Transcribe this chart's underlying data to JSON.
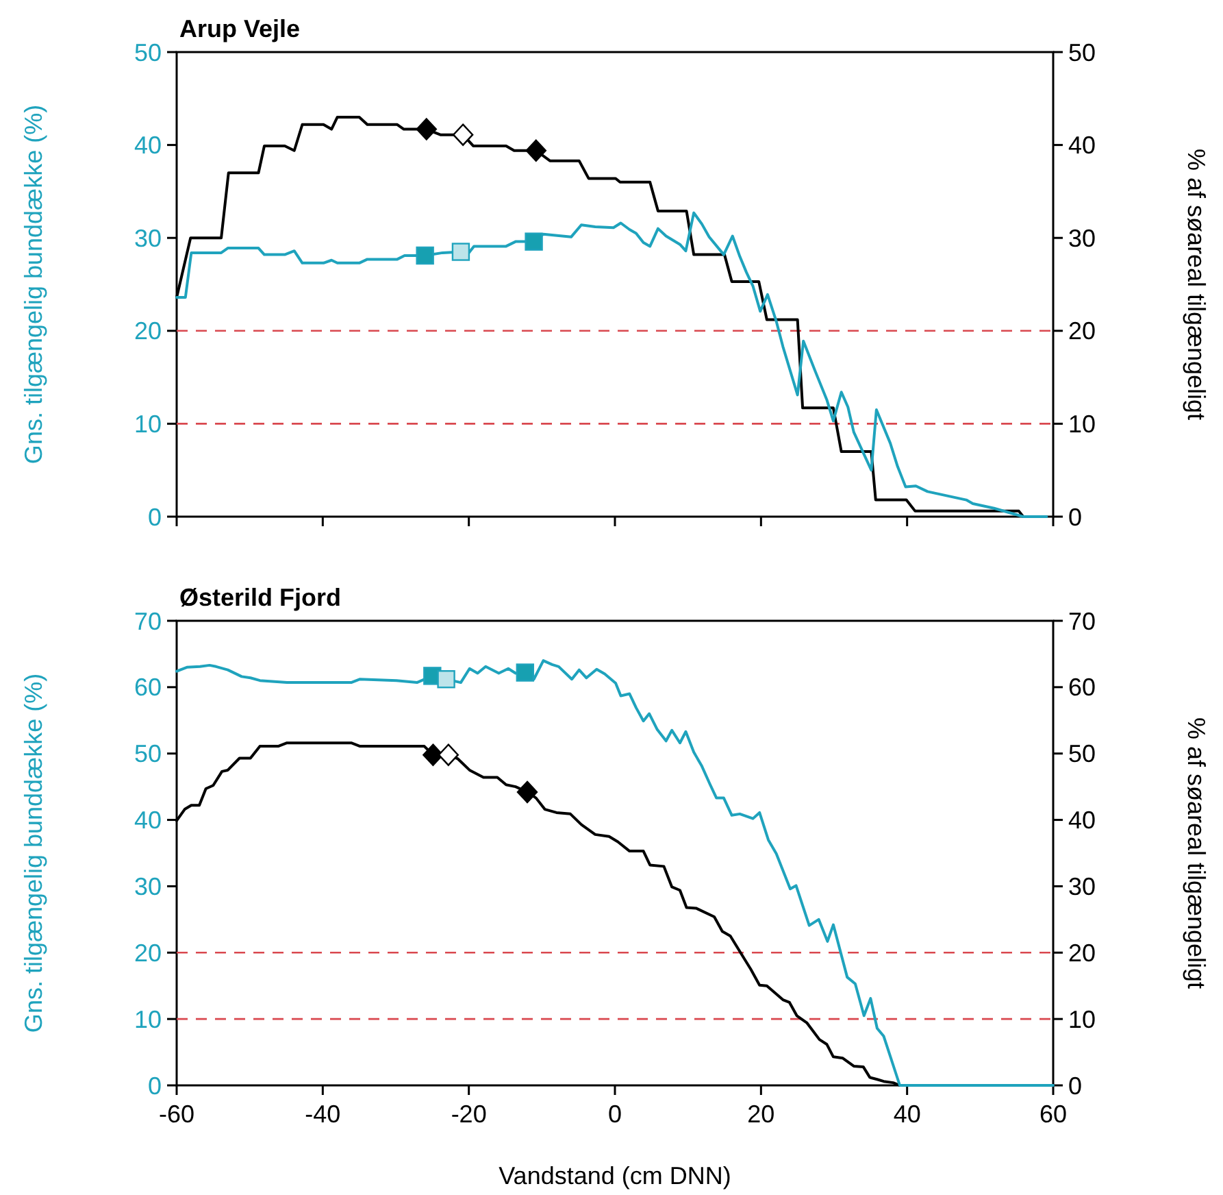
{
  "chart_data": [
    {
      "type": "line",
      "title": "Arup Vejle",
      "ylabel": "Gns. tilgængelig bunddække (%)",
      "y2label": "% af søareal tilgængeligt",
      "xlim": [
        -60,
        60
      ],
      "xticks": [
        -60,
        -40,
        -20,
        0,
        20,
        40,
        60
      ],
      "ylim": [
        0,
        50
      ],
      "yticks": [
        0,
        10,
        20,
        30,
        40,
        50
      ],
      "y2lim": [
        0,
        50
      ],
      "y2ticks": [
        0,
        10,
        20,
        30,
        40,
        50
      ],
      "tick_labels": "y",
      "ref_lines": [
        {
          "axis": "y",
          "value": 20,
          "color": "#d9484f",
          "line_style": "dashed"
        },
        {
          "axis": "y",
          "value": 10,
          "color": "#d9484f",
          "line_style": "dashed"
        }
      ],
      "series": [
        {
          "axis": "y2",
          "color": "#000000",
          "x": [
            -60,
            -58.1,
            -53.9,
            -52.9,
            -48.8,
            -48,
            -45.2,
            -43.9,
            -42.8,
            -39.9,
            -38.8,
            -38,
            -35,
            -33.9,
            -29.8,
            -28.9,
            -25.8,
            -23.9,
            -20.8,
            -19.4,
            -14.9,
            -13.8,
            -10.8,
            -8.9,
            -4.9,
            -3.6,
            0.1,
            0.7,
            4.8,
            5.9,
            9.8,
            10.8,
            15,
            16,
            19.7,
            20.8,
            25,
            25.7,
            29.9,
            31,
            35.1,
            35.7,
            39.9,
            41.1,
            55.3,
            55.9
          ],
          "values": [
            23.6,
            30,
            30,
            37,
            37,
            39.9,
            39.9,
            39.4,
            42.2,
            42.2,
            41.7,
            43,
            43,
            42.2,
            42.2,
            41.7,
            41.7,
            41.1,
            41.1,
            39.9,
            39.9,
            39.4,
            39.4,
            38.3,
            38.3,
            36.4,
            36.4,
            36,
            36,
            32.9,
            32.9,
            28.2,
            28.2,
            25.3,
            25.3,
            21.2,
            21.2,
            11.7,
            11.7,
            7,
            7,
            1.8,
            1.8,
            0.6,
            0.6,
            0
          ]
        },
        {
          "axis": "y",
          "color": "#1fa3bd",
          "x": [
            -60,
            -58.8,
            -58,
            -53.9,
            -53,
            -48.8,
            -48,
            -45.2,
            -43.9,
            -42.8,
            -39.9,
            -38.8,
            -38,
            -35,
            -33.9,
            -29.8,
            -28.8,
            -26,
            -23.6,
            -21.1,
            -20,
            -19.3,
            -14.9,
            -13.6,
            -11.1,
            -9.8,
            -6,
            -4.6,
            -2.7,
            -0.2,
            0.8,
            2,
            2.9,
            3.9,
            4.8,
            5.9,
            7,
            8.9,
            9.7,
            10.8,
            11.9,
            12.9,
            14.9,
            16.1,
            17.1,
            18,
            18.9,
            19.9,
            20.9,
            22.1,
            23,
            25,
            25.8,
            27.4,
            29,
            29.9,
            31,
            31.9,
            32.7,
            35.1,
            35.8,
            37.7,
            38.7,
            39.8,
            41.2,
            42.8,
            48.1,
            49,
            51.9,
            53.7,
            55.9,
            59.1
          ],
          "values": [
            23.6,
            23.6,
            28.4,
            28.4,
            28.9,
            28.9,
            28.2,
            28.2,
            28.6,
            27.3,
            27.3,
            27.6,
            27.3,
            27.3,
            27.7,
            27.7,
            28.1,
            28.1,
            28.4,
            28.5,
            28.4,
            29.1,
            29.1,
            29.6,
            29.6,
            30.4,
            30.1,
            31.4,
            31.2,
            31.1,
            31.6,
            30.9,
            30.5,
            29.5,
            29.1,
            31,
            30.2,
            29.3,
            28.6,
            32.7,
            31.5,
            30.1,
            28.2,
            30.2,
            28,
            26.3,
            24.8,
            22.1,
            23.9,
            21,
            18.3,
            13.1,
            18.9,
            15.7,
            12.6,
            10.3,
            13.4,
            11.8,
            9.1,
            5,
            11.5,
            7.9,
            5.4,
            3.2,
            3.3,
            2.7,
            1.8,
            1.4,
            0.9,
            0.5,
            0,
            0
          ]
        },
        {
          "type": "scatter",
          "axis": "y",
          "marker": "square",
          "color": "#17a0b1",
          "x": [
            -26,
            -11.1
          ],
          "values": [
            28.1,
            29.6
          ]
        },
        {
          "type": "scatter",
          "axis": "y",
          "marker": "square",
          "color": "#bde4ea",
          "x": [
            -21.1
          ],
          "values": [
            28.5
          ]
        },
        {
          "type": "scatter",
          "axis": "y2",
          "marker": "diamond",
          "color": "#000000",
          "x": [
            -25.8,
            -10.8
          ],
          "values": [
            41.7,
            39.4
          ]
        },
        {
          "type": "scatter",
          "axis": "y2",
          "marker": "diamond",
          "color": "#ffffff",
          "x": [
            -20.8
          ],
          "values": [
            41.1
          ]
        }
      ]
    },
    {
      "type": "line",
      "title": "Østerild Fjord",
      "xlabel": "Vandstand (cm DNN)",
      "ylabel": "Gns. tilgængelig bunddække (%)",
      "y2label": "% af søareal tilgængeligt",
      "xlim": [
        -60,
        60
      ],
      "xticks": [
        -60,
        -40,
        -20,
        0,
        20,
        40,
        60
      ],
      "ylim": [
        0,
        70
      ],
      "yticks": [
        0,
        10,
        20,
        30,
        40,
        50,
        60,
        70
      ],
      "y2lim": [
        0,
        70
      ],
      "y2ticks": [
        0,
        10,
        20,
        30,
        40,
        50,
        60,
        70
      ],
      "ref_lines": [
        {
          "axis": "y",
          "value": 20,
          "color": "#d9484f",
          "line_style": "dashed"
        },
        {
          "axis": "y",
          "value": 10,
          "color": "#d9484f",
          "line_style": "dashed"
        }
      ],
      "series": [
        {
          "axis": "y2",
          "color": "#000000",
          "x": [
            -60,
            -58.9,
            -58,
            -56.9,
            -56,
            -55,
            -53.8,
            -53,
            -51.4,
            -49.9,
            -48.6,
            -46.1,
            -44.9,
            -36.1,
            -34.9,
            -26.1,
            -24.9,
            -22.8,
            -21.5,
            -19.9,
            -18,
            -16.1,
            -14.9,
            -13.6,
            -12,
            -10.8,
            -9.6,
            -8,
            -6.1,
            -4.6,
            -2.7,
            -0.8,
            0.4,
            2,
            3.9,
            4.8,
            6.7,
            7.8,
            8.9,
            9.8,
            11.1,
            13.6,
            14.7,
            15.8,
            17.7,
            18.6,
            19.8,
            20.8,
            23,
            23.9,
            24.9,
            26.3,
            28,
            29,
            29.9,
            31.2,
            32.7,
            34,
            34.9,
            35.9,
            36.8,
            38.1,
            39
          ],
          "values": [
            39.9,
            41.6,
            42.2,
            42.2,
            44.7,
            45.2,
            47.3,
            47.5,
            49.3,
            49.3,
            51.1,
            51.1,
            51.6,
            51.6,
            51.1,
            51.1,
            49.8,
            49.8,
            49.2,
            47.5,
            46.4,
            46.4,
            45.3,
            45,
            44.2,
            43.3,
            41.6,
            41.1,
            40.9,
            39.3,
            37.8,
            37.5,
            36.7,
            35.3,
            35.3,
            33.2,
            33,
            29.9,
            29.4,
            26.8,
            26.7,
            25.4,
            23.2,
            22.5,
            19.1,
            17.5,
            15.1,
            15,
            12.9,
            12.5,
            10.5,
            9.4,
            6.9,
            6.2,
            4.3,
            4.1,
            2.9,
            2.8,
            1.2,
            0.9,
            0.6,
            0.4,
            0
          ]
        },
        {
          "axis": "y",
          "color": "#1fa3bd",
          "x": [
            -60,
            -58.6,
            -56.8,
            -55.5,
            -54.6,
            -53,
            -51.1,
            -49.9,
            -48.6,
            -44.9,
            -36.1,
            -34.9,
            -29.9,
            -27.1,
            -25,
            -23.1,
            -21.1,
            -19.9,
            -18.8,
            -17.7,
            -15.9,
            -14.6,
            -13.6,
            -12.3,
            -11.1,
            -9.8,
            -8.6,
            -7.7,
            -5.9,
            -4.9,
            -3.9,
            -2.5,
            -1.4,
            0.1,
            0.8,
            2,
            2.9,
            3.9,
            4.7,
            5.8,
            7,
            7.8,
            8.9,
            9.7,
            10.8,
            11.9,
            13,
            13.9,
            14.9,
            16,
            17.1,
            18.9,
            19.8,
            21,
            22.1,
            24,
            24.8,
            26.6,
            27.9,
            29.1,
            29.9,
            31.8,
            32.9,
            34.1,
            35,
            35.9,
            36.8,
            39,
            60
          ],
          "values": [
            62.4,
            63,
            63.1,
            63.3,
            63.1,
            62.6,
            61.6,
            61.4,
            61,
            60.7,
            60.7,
            61.2,
            61,
            60.7,
            61.7,
            61.2,
            60.7,
            62.8,
            62.1,
            63.1,
            62.1,
            62.8,
            62.1,
            62.2,
            61.2,
            64,
            63.4,
            63.1,
            61.2,
            62.6,
            61.4,
            62.7,
            62,
            60.6,
            58.7,
            59,
            56.9,
            54.9,
            56,
            53.6,
            51.9,
            53.5,
            51.6,
            53.3,
            50.2,
            48.1,
            45.4,
            43.3,
            43.3,
            40.7,
            40.9,
            40.2,
            41.1,
            37,
            34.9,
            29.6,
            30.1,
            24.1,
            25,
            21.7,
            24.2,
            16.3,
            15.3,
            10.5,
            13.1,
            8.6,
            7.4,
            0,
            0
          ]
        },
        {
          "type": "scatter",
          "axis": "y",
          "marker": "square",
          "color": "#17a0b1",
          "x": [
            -25,
            -12.3
          ],
          "values": [
            61.7,
            62.2
          ]
        },
        {
          "type": "scatter",
          "axis": "y",
          "marker": "square",
          "color": "#bde4ea",
          "x": [
            -23.1
          ],
          "values": [
            61.2
          ]
        },
        {
          "type": "scatter",
          "axis": "y2",
          "marker": "diamond",
          "color": "#000000",
          "x": [
            -24.9,
            -12
          ],
          "values": [
            49.8,
            44.2
          ]
        },
        {
          "type": "scatter",
          "axis": "y2",
          "marker": "diamond",
          "color": "#ffffff",
          "x": [
            -22.8
          ],
          "values": [
            49.8
          ]
        }
      ]
    }
  ]
}
